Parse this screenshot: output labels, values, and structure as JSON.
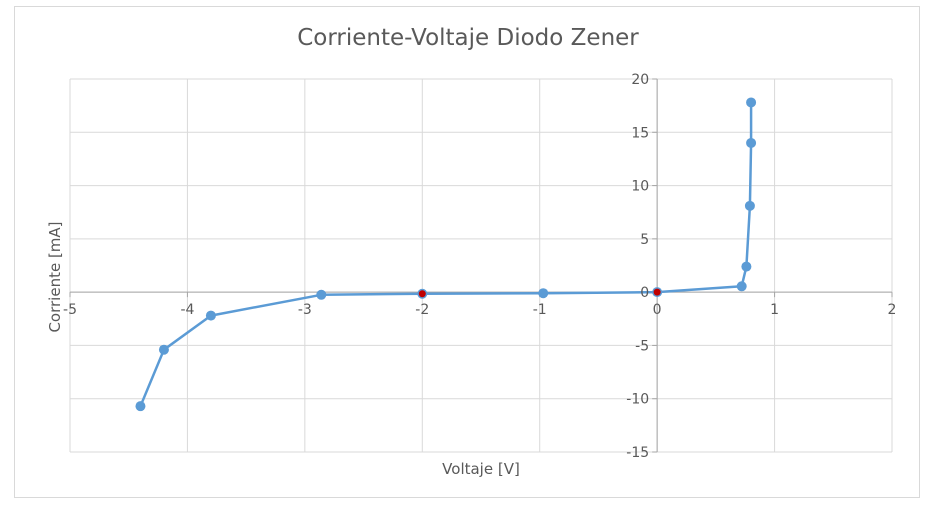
{
  "chart_data": {
    "type": "scatter",
    "title": "Corriente-Voltaje Diodo Zener",
    "xlabel": "Voltaje [V]",
    "ylabel": "Corriente [mA]",
    "xlim": [
      -5,
      2
    ],
    "ylim": [
      -15,
      20
    ],
    "x_ticks": [
      -5,
      -4,
      -3,
      -2,
      -1,
      0,
      1,
      2
    ],
    "y_ticks": [
      -15,
      -10,
      -5,
      0,
      5,
      10,
      15,
      20
    ],
    "grid": true,
    "legend": "none",
    "series": [
      {
        "color": "#5b9bd5",
        "points": [
          {
            "x": -4.4,
            "y": -10.7
          },
          {
            "x": -4.2,
            "y": -5.4
          },
          {
            "x": -3.8,
            "y": -2.2
          },
          {
            "x": -2.86,
            "y": -0.25
          },
          {
            "x": -2.0,
            "y": -0.15
          },
          {
            "x": -0.97,
            "y": -0.1
          },
          {
            "x": 0.0,
            "y": 0.0
          },
          {
            "x": 0.72,
            "y": 0.55
          },
          {
            "x": 0.76,
            "y": 2.4
          },
          {
            "x": 0.79,
            "y": 8.1
          },
          {
            "x": 0.8,
            "y": 14.0
          },
          {
            "x": 0.8,
            "y": 17.8
          }
        ]
      }
    ],
    "highlighted_points": [
      {
        "x": -2.0,
        "y": -0.15,
        "color": "#c00000"
      },
      {
        "x": 0.0,
        "y": 0.0,
        "color": "#c00000"
      }
    ]
  }
}
